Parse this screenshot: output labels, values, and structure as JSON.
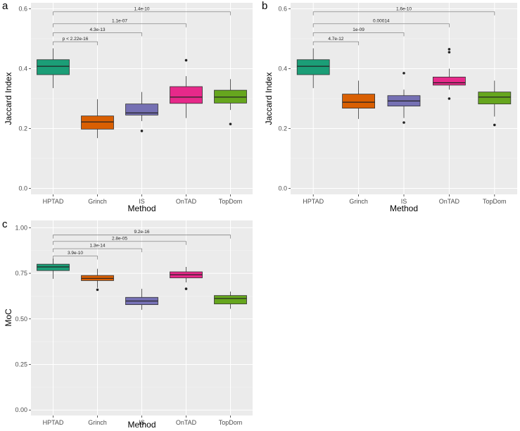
{
  "colors": {
    "panel_bg": "#ebebeb",
    "grid_major": "#ffffff",
    "grid_minor": "#f5f5f5",
    "tick_text": "#4d4d4d",
    "whisker": "#333333",
    "method_fill": {
      "HPTAD": "#1b9e77",
      "Grinch": "#d95f02",
      "IS": "#7570b3",
      "OnTAD": "#e7298a",
      "TopDom": "#66a61e"
    }
  },
  "chart_data": [
    {
      "panel": "a",
      "type": "boxplot",
      "xlabel": "Method",
      "ylabel": "Jaccard Index",
      "ylim": [
        -0.02,
        0.62
      ],
      "yticks": [
        0.0,
        0.2,
        0.4,
        0.6
      ],
      "ytick_labels": [
        "0.0",
        "0.2",
        "0.4",
        "0.6"
      ],
      "categories": [
        "HPTAD",
        "Grinch",
        "IS",
        "OnTAD",
        "TopDom"
      ],
      "boxes": [
        {
          "method": "HPTAD",
          "min": 0.335,
          "q1": 0.38,
          "median": 0.408,
          "q3": 0.43,
          "max": 0.468,
          "outliers": []
        },
        {
          "method": "Grinch",
          "min": 0.168,
          "q1": 0.198,
          "median": 0.222,
          "q3": 0.242,
          "max": 0.298,
          "outliers": []
        },
        {
          "method": "IS",
          "min": 0.225,
          "q1": 0.245,
          "median": 0.252,
          "q3": 0.282,
          "max": 0.322,
          "outliers": [
            0.192
          ]
        },
        {
          "method": "OnTAD",
          "min": 0.235,
          "q1": 0.284,
          "median": 0.305,
          "q3": 0.34,
          "max": 0.375,
          "outliers": [
            0.428
          ]
        },
        {
          "method": "TopDom",
          "min": 0.262,
          "q1": 0.285,
          "median": 0.305,
          "q3": 0.328,
          "max": 0.365,
          "outliers": [
            0.215
          ]
        }
      ],
      "comparisons": [
        {
          "from": "HPTAD",
          "to": "Grinch",
          "label": "p < 2.22e-16",
          "y": 0.49
        },
        {
          "from": "HPTAD",
          "to": "IS",
          "label": "4.3e-13",
          "y": 0.52
        },
        {
          "from": "HPTAD",
          "to": "OnTAD",
          "label": "1.1e-07",
          "y": 0.55
        },
        {
          "from": "HPTAD",
          "to": "TopDom",
          "label": "1.4e-10",
          "y": 0.59
        }
      ]
    },
    {
      "panel": "b",
      "type": "boxplot",
      "xlabel": "Method",
      "ylabel": "Jaccard Index",
      "ylim": [
        -0.02,
        0.62
      ],
      "yticks": [
        0.0,
        0.2,
        0.4,
        0.6
      ],
      "ytick_labels": [
        "0.0",
        "0.2",
        "0.4",
        "0.6"
      ],
      "categories": [
        "HPTAD",
        "Grinch",
        "IS",
        "OnTAD",
        "TopDom"
      ],
      "boxes": [
        {
          "method": "HPTAD",
          "min": 0.335,
          "q1": 0.38,
          "median": 0.408,
          "q3": 0.43,
          "max": 0.468,
          "outliers": []
        },
        {
          "method": "Grinch",
          "min": 0.232,
          "q1": 0.268,
          "median": 0.288,
          "q3": 0.315,
          "max": 0.36,
          "outliers": []
        },
        {
          "method": "IS",
          "min": 0.235,
          "q1": 0.275,
          "median": 0.292,
          "q3": 0.31,
          "max": 0.33,
          "outliers": [
            0.22,
            0.385
          ]
        },
        {
          "method": "OnTAD",
          "min": 0.33,
          "q1": 0.345,
          "median": 0.353,
          "q3": 0.372,
          "max": 0.4,
          "outliers": [
            0.3,
            0.455,
            0.465
          ]
        },
        {
          "method": "TopDom",
          "min": 0.24,
          "q1": 0.282,
          "median": 0.305,
          "q3": 0.322,
          "max": 0.36,
          "outliers": [
            0.212
          ]
        }
      ],
      "comparisons": [
        {
          "from": "HPTAD",
          "to": "Grinch",
          "label": "4.7e-12",
          "y": 0.49
        },
        {
          "from": "HPTAD",
          "to": "IS",
          "label": "1e-09",
          "y": 0.52
        },
        {
          "from": "HPTAD",
          "to": "OnTAD",
          "label": "0.00014",
          "y": 0.55
        },
        {
          "from": "HPTAD",
          "to": "TopDom",
          "label": "1.6e-10",
          "y": 0.59
        }
      ]
    },
    {
      "panel": "c",
      "type": "boxplot",
      "xlabel": "Method",
      "ylabel": "MoC",
      "ylim": [
        -0.03,
        1.04
      ],
      "yticks": [
        0.0,
        0.25,
        0.5,
        0.75,
        1.0
      ],
      "ytick_labels": [
        "0.00",
        "0.25",
        "0.50",
        "0.75",
        "1.00"
      ],
      "categories": [
        "HPTAD",
        "Grinch",
        "IS",
        "OnTAD",
        "TopDom"
      ],
      "boxes": [
        {
          "method": "HPTAD",
          "min": 0.72,
          "q1": 0.765,
          "median": 0.785,
          "q3": 0.8,
          "max": 0.83,
          "outliers": []
        },
        {
          "method": "Grinch",
          "min": 0.67,
          "q1": 0.71,
          "median": 0.722,
          "q3": 0.738,
          "max": 0.775,
          "outliers": [
            0.66
          ]
        },
        {
          "method": "IS",
          "min": 0.55,
          "q1": 0.578,
          "median": 0.598,
          "q3": 0.618,
          "max": 0.665,
          "outliers": []
        },
        {
          "method": "OnTAD",
          "min": 0.7,
          "q1": 0.725,
          "median": 0.742,
          "q3": 0.758,
          "max": 0.785,
          "outliers": [
            0.665
          ]
        },
        {
          "method": "TopDom",
          "min": 0.555,
          "q1": 0.582,
          "median": 0.612,
          "q3": 0.628,
          "max": 0.65,
          "outliers": []
        }
      ],
      "comparisons": [
        {
          "from": "HPTAD",
          "to": "Grinch",
          "label": "3.9e-10",
          "y": 0.845
        },
        {
          "from": "HPTAD",
          "to": "IS",
          "label": "1.3e-14",
          "y": 0.885
        },
        {
          "from": "HPTAD",
          "to": "OnTAD",
          "label": "2.8e-05",
          "y": 0.925
        },
        {
          "from": "HPTAD",
          "to": "TopDom",
          "label": "9.2e-16",
          "y": 0.96
        }
      ]
    }
  ]
}
